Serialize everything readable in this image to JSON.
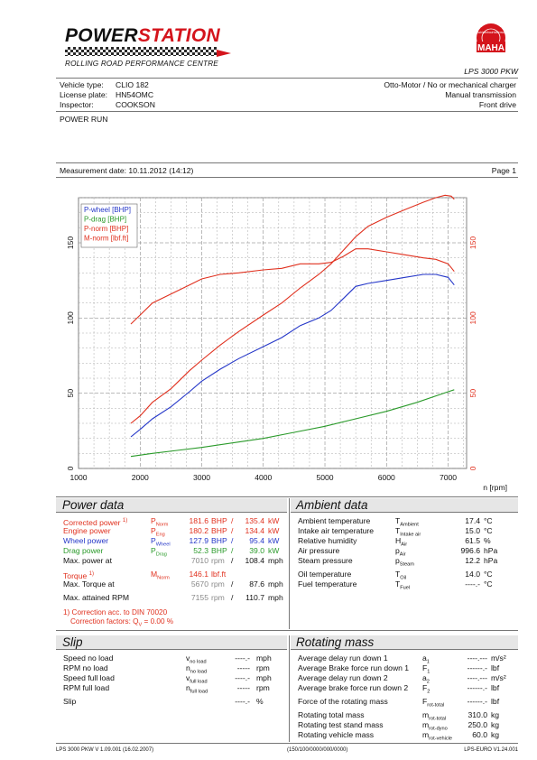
{
  "header": {
    "brand_a": "POWER",
    "brand_b": "STATION",
    "subtitle": "ROLLING ROAD PERFORMANCE CENTRE",
    "maha_ring": "MaschinenbauHaldenwang",
    "maha_word": "MAHA",
    "model": "LPS 3000 PKW"
  },
  "vehicle": {
    "type_label": "Vehicle type:",
    "type_value": "CLIO 182",
    "plate_label": "License plate:",
    "plate_value": "HN54OMC",
    "inspector_label": "Inspector:",
    "inspector_value": "COOKSON",
    "engine": "Otto-Motor / No or mechanical charger",
    "transmission": "Manual transmission",
    "drive": "Front drive"
  },
  "run_title": "POWER RUN",
  "measurement": {
    "label": "Measurement date: 10.11.2012 (14:12)",
    "page": "Page 1"
  },
  "chart_data": {
    "type": "line",
    "xlabel": "n [rpm]",
    "xlim": [
      1000,
      7300
    ],
    "x_ticks": [
      "1000",
      "2000",
      "3000",
      "4000",
      "5000",
      "6000",
      "7000"
    ],
    "y_left_ticks": [
      "0",
      "50",
      "100",
      "150"
    ],
    "y_right_ticks": [
      "0",
      "50",
      "100",
      "150"
    ],
    "ylim": [
      0,
      180
    ],
    "grid": true,
    "legend_position": "top-left",
    "series": [
      {
        "name": "P-wheel [BHP]",
        "color": "#2436c8",
        "x": [
          1850,
          2000,
          2200,
          2500,
          2800,
          3000,
          3300,
          3600,
          4000,
          4300,
          4600,
          4900,
          5100,
          5300,
          5500,
          5700,
          6000,
          6300,
          6600,
          6800,
          7000,
          7100
        ],
        "values": [
          21,
          26,
          33,
          41,
          51,
          58,
          66,
          73,
          81,
          87,
          95,
          100,
          105,
          113,
          121,
          123,
          125,
          127,
          129,
          129,
          127,
          122
        ]
      },
      {
        "name": "P-drag [BHP]",
        "color": "#2a9a2a",
        "x": [
          1850,
          2200,
          2600,
          3000,
          3500,
          4000,
          4500,
          5000,
          5500,
          6000,
          6500,
          7000,
          7100
        ],
        "values": [
          8,
          10,
          12,
          14,
          17,
          20,
          24,
          28,
          33,
          38,
          44,
          51,
          52.3
        ]
      },
      {
        "name": "P-norm [BHP]",
        "color": "#e0301e",
        "x": [
          1850,
          2000,
          2200,
          2500,
          2800,
          3000,
          3300,
          3600,
          4000,
          4300,
          4600,
          4900,
          5100,
          5300,
          5500,
          5700,
          6000,
          6300,
          6600,
          6800,
          6950,
          7050,
          7100
        ],
        "values": [
          30,
          35,
          44,
          53,
          65,
          72,
          82,
          91,
          102,
          110,
          120,
          129,
          136,
          145,
          154,
          161,
          167,
          172,
          177,
          180,
          181.6,
          181,
          179
        ]
      },
      {
        "name": "M-norm [lbf.ft]",
        "color": "#e0301e",
        "x": [
          1850,
          2000,
          2200,
          2500,
          2800,
          3000,
          3300,
          3600,
          4000,
          4300,
          4600,
          4900,
          5100,
          5300,
          5500,
          5700,
          6000,
          6300,
          6600,
          6800,
          7000,
          7100
        ],
        "values": [
          96,
          102,
          110,
          116,
          122,
          126,
          129,
          130,
          132,
          133,
          136,
          136,
          137,
          141,
          146,
          146,
          144,
          142,
          140,
          139,
          136,
          131
        ]
      }
    ]
  },
  "power_data": {
    "title": "Power data",
    "rows": [
      {
        "label": "Corrected power",
        "note": "1)",
        "sym": "P",
        "sub": "Norm",
        "v1": "181.6",
        "u1": "BHP",
        "sep": "/",
        "v2": "135.4",
        "u2": "kW",
        "cls": "red"
      },
      {
        "label": "Engine power",
        "note": "",
        "sym": "P",
        "sub": "Eng",
        "v1": "180.2",
        "u1": "BHP",
        "sep": "/",
        "v2": "134.4",
        "u2": "kW",
        "cls": "red"
      },
      {
        "label": "Wheel power",
        "note": "",
        "sym": "P",
        "sub": "Wheel",
        "v1": "127.9",
        "u1": "BHP",
        "sep": "/",
        "v2": "95.4",
        "u2": "kW",
        "cls": "blue"
      },
      {
        "label": "Drag power",
        "note": "",
        "sym": "P",
        "sub": "Drag",
        "v1": "52.3",
        "u1": "BHP",
        "sep": "/",
        "v2": "39.0",
        "u2": "kW",
        "cls": "green"
      }
    ],
    "max_power_at": {
      "label": "Max. power at",
      "v1": "7010",
      "u1": "rpm",
      "sep": "/",
      "v2": "108.4",
      "u2": "mph"
    },
    "torque": {
      "label": "Torque",
      "note": "1)",
      "sym": "M",
      "sub": "Norm",
      "v1": "146.1",
      "u1": "lbf.ft"
    },
    "max_torque_at": {
      "label": "Max. Torque at",
      "v1": "5670",
      "u1": "rpm",
      "sep": "/",
      "v2": "87.6",
      "u2": "mph"
    },
    "max_rpm": {
      "label": "Max. attained RPM",
      "v1": "7155",
      "u1": "rpm",
      "sep": "/",
      "v2": "110.7",
      "u2": "mph"
    },
    "correction_line1": "1) Correction acc. to DIN 70020",
    "correction_line2": "Correction factors: Q",
    "correction_sub": "V",
    "correction_value": "=    0.00 %"
  },
  "ambient_data": {
    "title": "Ambient data",
    "rows": [
      {
        "label": "Ambient temperature",
        "sym": "T",
        "sub": "Ambient",
        "value": "17.4",
        "unit": "°C"
      },
      {
        "label": "Intake air temperature",
        "sym": "T",
        "sub": "Intake air",
        "value": "15.0",
        "unit": "°C"
      },
      {
        "label": "Relative humidity",
        "sym": "H",
        "sub": "Air",
        "value": "61.5",
        "unit": "%"
      },
      {
        "label": "Air pressure",
        "sym": "p",
        "sub": "Air",
        "value": "996.6",
        "unit": "hPa"
      },
      {
        "label": "Steam pressure",
        "sym": "p",
        "sub": "Steam",
        "value": "12.2",
        "unit": "hPa"
      },
      {
        "label": "Oil temperature",
        "sym": "T",
        "sub": "Oil",
        "value": "14.0",
        "unit": "°C"
      },
      {
        "label": "Fuel temperature",
        "sym": "T",
        "sub": "Fuel",
        "value": "----.-",
        "unit": "°C"
      }
    ]
  },
  "slip": {
    "title": "Slip",
    "rows": [
      {
        "label": "Speed no load",
        "sym": "v",
        "sub": "no load",
        "value": "----.-",
        "unit": "mph"
      },
      {
        "label": "RPM no load",
        "sym": "n",
        "sub": "no load",
        "value": "-----",
        "unit": "rpm"
      },
      {
        "label": "Speed full load",
        "sym": "v",
        "sub": "full load",
        "value": "----.-",
        "unit": "mph"
      },
      {
        "label": "RPM full load",
        "sym": "n",
        "sub": "full load",
        "value": "-----",
        "unit": "rpm"
      },
      {
        "label": "Slip",
        "sym": "",
        "sub": "",
        "value": "----.-",
        "unit": "%"
      }
    ]
  },
  "rotating_mass": {
    "title": "Rotating mass",
    "rows": [
      {
        "label": "Average delay run down 1",
        "sym": "a",
        "sub": "1",
        "value": "----.---",
        "unit": "m/s²"
      },
      {
        "label": "Average Brake force run down 1",
        "sym": "F",
        "sub": "1",
        "value": "------.-",
        "unit": "lbf"
      },
      {
        "label": "Average delay run down 2",
        "sym": "a",
        "sub": "2",
        "value": "----.---",
        "unit": "m/s²"
      },
      {
        "label": "Average brake force run down 2",
        "sym": "F",
        "sub": "2",
        "value": "------.-",
        "unit": "lbf"
      },
      {
        "label": "Force of the rotating mass",
        "sym": "F",
        "sub": "rot-total",
        "value": "------.-",
        "unit": "lbf"
      },
      {
        "label": "Rotating total mass",
        "sym": "m",
        "sub": "rot-total",
        "value": "310.0",
        "unit": "kg"
      },
      {
        "label": "Rotating test stand mass",
        "sym": "m",
        "sub": "rot-dyno",
        "value": "250.0",
        "unit": "kg"
      },
      {
        "label": "Rotating vehicle mass",
        "sym": "m",
        "sub": "rot-vehicle",
        "value": "60.0",
        "unit": "kg"
      }
    ]
  },
  "footer": {
    "left": "LPS 3000 PKW V 1.09.001 (16.02.2007)",
    "center": "(150/100/0000/000/0000)",
    "right": "LPS-EURO V1.24.001"
  }
}
